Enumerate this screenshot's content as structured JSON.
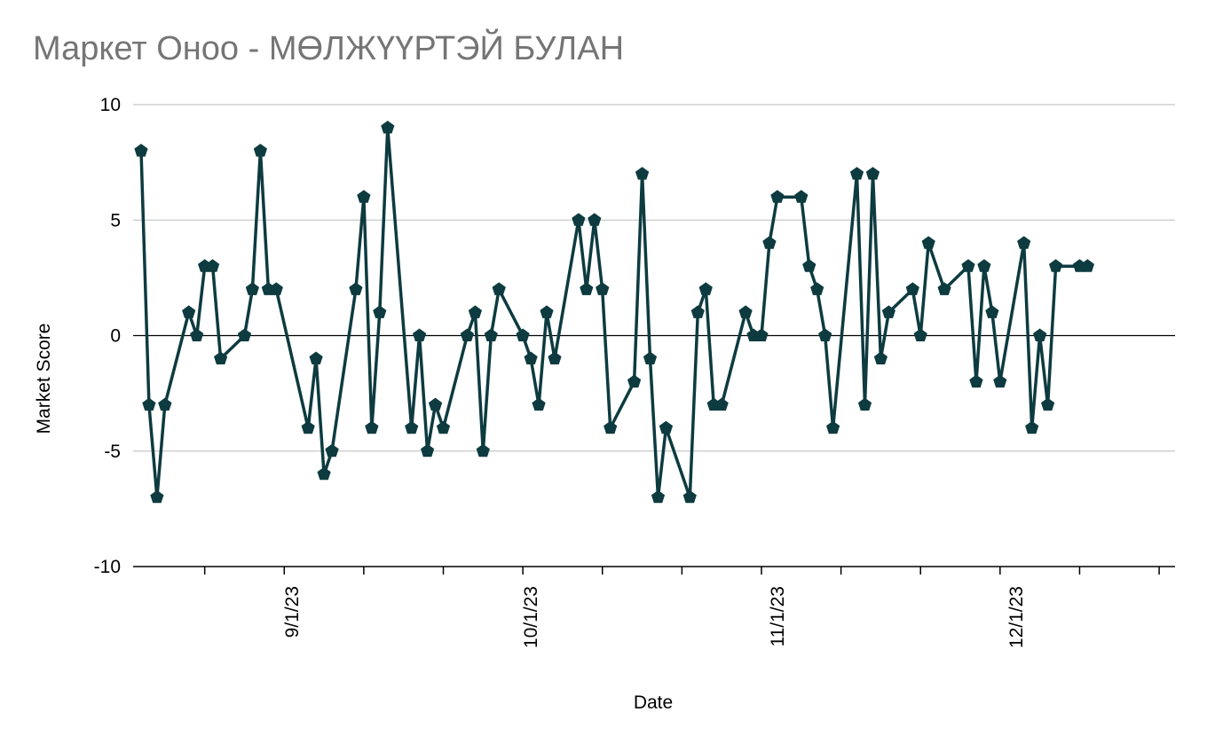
{
  "chart_data": {
    "type": "line",
    "title": "Маркет Оноо - МӨЛЖҮҮРТЭЙ БУЛАН",
    "xlabel": "Date",
    "ylabel": "Market Score",
    "ylim": [
      -10,
      10
    ],
    "yticks": [
      {
        "value": 10,
        "label": "10"
      },
      {
        "value": 5,
        "label": "5"
      },
      {
        "value": 0,
        "label": "0"
      },
      {
        "value": -5,
        "label": "-5"
      },
      {
        "value": -10,
        "label": "-10"
      }
    ],
    "xlim": [
      "2023-08-12",
      "2023-12-21"
    ],
    "xticks": [
      "2023-08-21",
      "2023-08-31",
      "2023-09-10",
      "2023-09-20",
      "2023-09-30",
      "2023-10-10",
      "2023-10-20",
      "2023-10-30",
      "2023-11-09",
      "2023-11-19",
      "2023-11-29",
      "2023-12-09",
      "2023-12-19"
    ],
    "xlabels": [
      {
        "date": "2023-09-01",
        "label": "9/1/23"
      },
      {
        "date": "2023-10-01",
        "label": "10/1/23"
      },
      {
        "date": "2023-11-01",
        "label": "11/1/23"
      },
      {
        "date": "2023-12-01",
        "label": "12/1/23"
      }
    ],
    "grid": true,
    "legend": false,
    "colors": {
      "line": "#0d3b40",
      "grid": "#c8c8c8",
      "axis": "#000000",
      "title": "#757575"
    },
    "series": [
      {
        "points": [
          {
            "x": "2023-08-13",
            "y": 8
          },
          {
            "x": "2023-08-14",
            "y": -3
          },
          {
            "x": "2023-08-15",
            "y": -7
          },
          {
            "x": "2023-08-16",
            "y": -3
          },
          {
            "x": "2023-08-19",
            "y": 1
          },
          {
            "x": "2023-08-20",
            "y": 0
          },
          {
            "x": "2023-08-21",
            "y": 3
          },
          {
            "x": "2023-08-22",
            "y": 3
          },
          {
            "x": "2023-08-23",
            "y": -1
          },
          {
            "x": "2023-08-26",
            "y": 0
          },
          {
            "x": "2023-08-27",
            "y": 2
          },
          {
            "x": "2023-08-28",
            "y": 8
          },
          {
            "x": "2023-08-29",
            "y": 2
          },
          {
            "x": "2023-08-30",
            "y": 2
          },
          {
            "x": "2023-09-03",
            "y": -4
          },
          {
            "x": "2023-09-04",
            "y": -1
          },
          {
            "x": "2023-09-05",
            "y": -6
          },
          {
            "x": "2023-09-06",
            "y": -5
          },
          {
            "x": "2023-09-09",
            "y": 2
          },
          {
            "x": "2023-09-10",
            "y": 6
          },
          {
            "x": "2023-09-11",
            "y": -4
          },
          {
            "x": "2023-09-12",
            "y": 1
          },
          {
            "x": "2023-09-13",
            "y": 9
          },
          {
            "x": "2023-09-16",
            "y": -4
          },
          {
            "x": "2023-09-17",
            "y": 0
          },
          {
            "x": "2023-09-18",
            "y": -5
          },
          {
            "x": "2023-09-19",
            "y": -3
          },
          {
            "x": "2023-09-20",
            "y": -4
          },
          {
            "x": "2023-09-23",
            "y": 0
          },
          {
            "x": "2023-09-24",
            "y": 1
          },
          {
            "x": "2023-09-25",
            "y": -5
          },
          {
            "x": "2023-09-26",
            "y": 0
          },
          {
            "x": "2023-09-27",
            "y": 2
          },
          {
            "x": "2023-09-30",
            "y": 0
          },
          {
            "x": "2023-10-01",
            "y": -1
          },
          {
            "x": "2023-10-02",
            "y": -3
          },
          {
            "x": "2023-10-03",
            "y": 1
          },
          {
            "x": "2023-10-04",
            "y": -1
          },
          {
            "x": "2023-10-07",
            "y": 5
          },
          {
            "x": "2023-10-08",
            "y": 2
          },
          {
            "x": "2023-10-09",
            "y": 5
          },
          {
            "x": "2023-10-10",
            "y": 2
          },
          {
            "x": "2023-10-11",
            "y": -4
          },
          {
            "x": "2023-10-14",
            "y": -2
          },
          {
            "x": "2023-10-15",
            "y": 7
          },
          {
            "x": "2023-10-16",
            "y": -1
          },
          {
            "x": "2023-10-17",
            "y": -7
          },
          {
            "x": "2023-10-18",
            "y": -4
          },
          {
            "x": "2023-10-21",
            "y": -7
          },
          {
            "x": "2023-10-22",
            "y": 1
          },
          {
            "x": "2023-10-23",
            "y": 2
          },
          {
            "x": "2023-10-24",
            "y": -3
          },
          {
            "x": "2023-10-25",
            "y": -3
          },
          {
            "x": "2023-10-28",
            "y": 1
          },
          {
            "x": "2023-10-29",
            "y": 0
          },
          {
            "x": "2023-10-30",
            "y": 0
          },
          {
            "x": "2023-10-31",
            "y": 4
          },
          {
            "x": "2023-11-01",
            "y": 6
          },
          {
            "x": "2023-11-04",
            "y": 6
          },
          {
            "x": "2023-11-05",
            "y": 3
          },
          {
            "x": "2023-11-06",
            "y": 2
          },
          {
            "x": "2023-11-07",
            "y": 0
          },
          {
            "x": "2023-11-08",
            "y": -4
          },
          {
            "x": "2023-11-11",
            "y": 7
          },
          {
            "x": "2023-11-12",
            "y": -3
          },
          {
            "x": "2023-11-13",
            "y": 7
          },
          {
            "x": "2023-11-14",
            "y": -1
          },
          {
            "x": "2023-11-15",
            "y": 1
          },
          {
            "x": "2023-11-18",
            "y": 2
          },
          {
            "x": "2023-11-19",
            "y": 0
          },
          {
            "x": "2023-11-20",
            "y": 4
          },
          {
            "x": "2023-11-22",
            "y": 2
          },
          {
            "x": "2023-11-25",
            "y": 3
          },
          {
            "x": "2023-11-26",
            "y": -2
          },
          {
            "x": "2023-11-27",
            "y": 3
          },
          {
            "x": "2023-11-28",
            "y": 1
          },
          {
            "x": "2023-11-29",
            "y": -2
          },
          {
            "x": "2023-12-02",
            "y": 4
          },
          {
            "x": "2023-12-03",
            "y": -4
          },
          {
            "x": "2023-12-04",
            "y": 0
          },
          {
            "x": "2023-12-05",
            "y": -3
          },
          {
            "x": "2023-12-06",
            "y": 3
          },
          {
            "x": "2023-12-09",
            "y": 3
          },
          {
            "x": "2023-12-10",
            "y": 3
          }
        ]
      }
    ]
  }
}
